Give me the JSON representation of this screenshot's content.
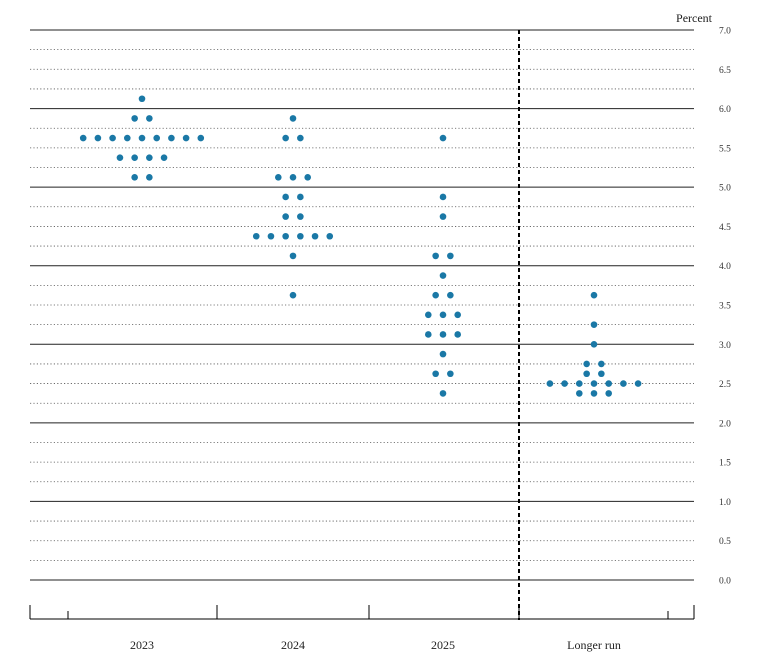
{
  "chart_data": {
    "type": "scatter",
    "unit_label": "Percent",
    "categories": [
      "2023",
      "2024",
      "2025",
      "Longer run"
    ],
    "ylim": [
      0,
      7
    ],
    "yticks": [
      "0.0",
      "0.5",
      "1.0",
      "1.5",
      "2.0",
      "2.5",
      "3.0",
      "3.5",
      "4.0",
      "4.5",
      "5.0",
      "5.5",
      "6.0",
      "6.5",
      "7.0"
    ],
    "grid": true,
    "dot_color": "#1a78a6",
    "series": [
      {
        "category": "2023",
        "points": [
          {
            "y": 6.125,
            "n": 1
          },
          {
            "y": 5.875,
            "n": 2
          },
          {
            "y": 5.625,
            "n": 9
          },
          {
            "y": 5.375,
            "n": 4
          },
          {
            "y": 5.125,
            "n": 2
          }
        ]
      },
      {
        "category": "2024",
        "points": [
          {
            "y": 5.875,
            "n": 1
          },
          {
            "y": 5.625,
            "n": 2
          },
          {
            "y": 5.125,
            "n": 3
          },
          {
            "y": 4.875,
            "n": 2
          },
          {
            "y": 4.625,
            "n": 2
          },
          {
            "y": 4.375,
            "n": 6
          },
          {
            "y": 4.125,
            "n": 1
          },
          {
            "y": 3.625,
            "n": 1
          }
        ]
      },
      {
        "category": "2025",
        "points": [
          {
            "y": 5.625,
            "n": 1
          },
          {
            "y": 4.875,
            "n": 1
          },
          {
            "y": 4.625,
            "n": 1
          },
          {
            "y": 4.125,
            "n": 2
          },
          {
            "y": 3.875,
            "n": 1
          },
          {
            "y": 3.625,
            "n": 2
          },
          {
            "y": 3.375,
            "n": 3
          },
          {
            "y": 3.125,
            "n": 3
          },
          {
            "y": 2.875,
            "n": 1
          },
          {
            "y": 2.625,
            "n": 2
          },
          {
            "y": 2.375,
            "n": 1
          }
        ]
      },
      {
        "category": "Longer run",
        "points": [
          {
            "y": 3.625,
            "n": 1
          },
          {
            "y": 3.25,
            "n": 1
          },
          {
            "y": 3.0,
            "n": 1
          },
          {
            "y": 2.75,
            "n": 2
          },
          {
            "y": 2.625,
            "n": 2
          },
          {
            "y": 2.5,
            "n": 7
          },
          {
            "y": 2.375,
            "n": 3
          }
        ]
      }
    ]
  }
}
